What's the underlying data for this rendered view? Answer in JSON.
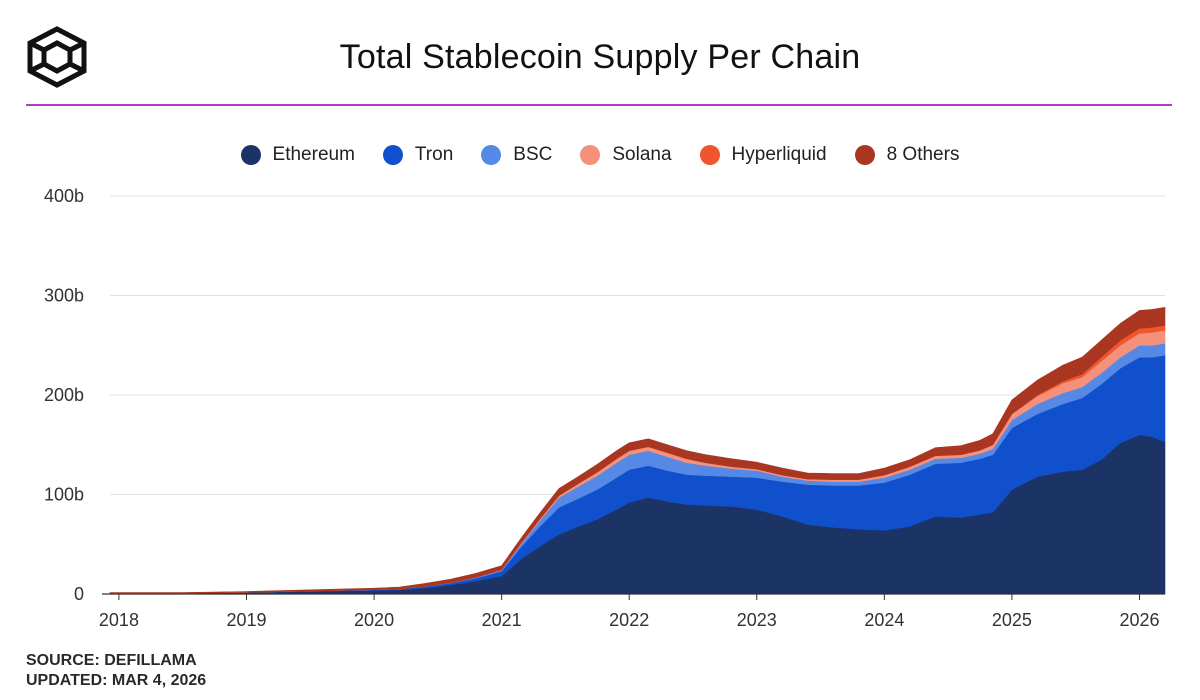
{
  "header": {
    "title": "Total Stablecoin Supply Per Chain",
    "logo_icon": "cube-logo-icon",
    "accent_color": "#b23cc9"
  },
  "footer": {
    "source": "SOURCE: DEFILLAMA",
    "updated": "UPDATED: MAR 4, 2026"
  },
  "chart_data": {
    "type": "area",
    "stacked": true,
    "title": "Total Stablecoin Supply Per Chain",
    "xlabel": "",
    "ylabel": "",
    "xlim": [
      2017.93,
      2026.2
    ],
    "ylim": [
      0,
      400
    ],
    "y_ticks": [
      0,
      100,
      200,
      300,
      400
    ],
    "y_tick_labels": [
      "0",
      "100b",
      "200b",
      "300b",
      "400b"
    ],
    "x_ticks": [
      2018,
      2019,
      2020,
      2021,
      2022,
      2023,
      2024,
      2025,
      2026
    ],
    "x_tick_labels": [
      "2018",
      "2019",
      "2020",
      "2021",
      "2022",
      "2023",
      "2024",
      "2025",
      "2026"
    ],
    "grid": true,
    "legend_position": "top-center",
    "x": [
      2017.93,
      2018.5,
      2019.0,
      2019.5,
      2020.0,
      2020.2,
      2020.4,
      2020.6,
      2020.8,
      2021.0,
      2021.15,
      2021.3,
      2021.45,
      2021.6,
      2021.75,
      2021.9,
      2022.0,
      2022.15,
      2022.3,
      2022.45,
      2022.6,
      2022.8,
      2023.0,
      2023.2,
      2023.4,
      2023.6,
      2023.8,
      2024.0,
      2024.2,
      2024.4,
      2024.6,
      2024.75,
      2024.85,
      2025.0,
      2025.2,
      2025.4,
      2025.55,
      2025.7,
      2025.85,
      2026.0,
      2026.1,
      2026.2
    ],
    "series": [
      {
        "name": "Ethereum",
        "color": "#1c3366",
        "values": [
          1,
          1,
          1.5,
          2.5,
          3.5,
          4,
          6,
          9,
          13,
          18,
          35,
          48,
          60,
          68,
          75,
          85,
          92,
          97,
          93,
          90,
          89,
          88,
          85,
          78,
          70,
          67,
          65,
          64,
          68,
          78,
          77,
          80,
          82,
          105,
          118,
          123,
          125,
          135,
          152,
          160,
          158,
          153
        ]
      },
      {
        "name": "Tron",
        "color": "#1150cc",
        "values": [
          0,
          0,
          0.2,
          0.5,
          0.8,
          1,
          1.5,
          2,
          3,
          5,
          12,
          20,
          27,
          28,
          30,
          32,
          33,
          32,
          31,
          30,
          30,
          30,
          32,
          35,
          40,
          42,
          44,
          48,
          52,
          53,
          55,
          56,
          58,
          62,
          63,
          68,
          72,
          76,
          75,
          78,
          80,
          87
        ]
      },
      {
        "name": "BSC",
        "color": "#5689e5",
        "values": [
          0,
          0,
          0,
          0,
          0,
          0,
          0.2,
          0.4,
          0.6,
          1,
          3,
          6,
          10,
          12,
          14,
          15,
          15,
          15,
          14,
          12,
          10,
          8,
          7,
          5,
          4,
          4,
          4,
          5,
          5,
          5,
          5,
          5,
          6,
          8,
          10,
          11,
          11,
          11,
          11,
          12,
          12,
          12
        ]
      },
      {
        "name": "Solana",
        "color": "#f4917a",
        "values": [
          0,
          0,
          0,
          0,
          0,
          0,
          0,
          0,
          0.2,
          0.4,
          0.8,
          1.5,
          2,
          3,
          3.5,
          4,
          4,
          4,
          4,
          4,
          3,
          2,
          1.5,
          1.5,
          1.5,
          2,
          2,
          2.5,
          3,
          3,
          3,
          3.5,
          4,
          6,
          8,
          10,
          10,
          12,
          12,
          12,
          13,
          13
        ]
      },
      {
        "name": "Hyperliquid",
        "color": "#f0552d",
        "values": [
          0,
          0,
          0,
          0,
          0,
          0,
          0,
          0,
          0,
          0,
          0,
          0,
          0,
          0,
          0,
          0,
          0,
          0,
          0,
          0,
          0,
          0,
          0,
          0,
          0,
          0,
          0,
          0,
          0,
          0,
          0,
          0,
          0,
          0,
          1,
          2,
          3,
          4,
          5,
          5,
          5,
          5
        ]
      },
      {
        "name": "8 Others",
        "color": "#a93620",
        "values": [
          0.5,
          0.5,
          0.8,
          1.2,
          1.5,
          2,
          3,
          3.5,
          4,
          4,
          5,
          6,
          7,
          7,
          8,
          8,
          8,
          8,
          8,
          8,
          8,
          8,
          7,
          7,
          6,
          6,
          6,
          7,
          7,
          8,
          9,
          10,
          11,
          14,
          15,
          16,
          17,
          17,
          17,
          18,
          18,
          18
        ]
      }
    ]
  }
}
